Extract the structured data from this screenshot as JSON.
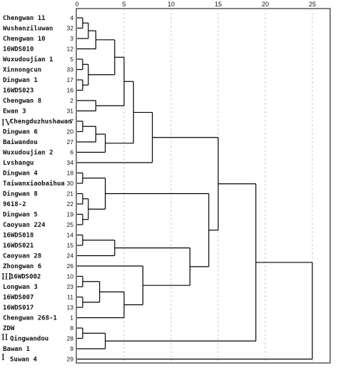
{
  "axis": {
    "ticks": [
      "0",
      "5",
      "10",
      "15",
      "20",
      "25"
    ]
  },
  "groups": [
    "IV",
    "III",
    "II",
    "I"
  ],
  "leaves": [
    {
      "label": "Chengwan 11",
      "num": "4"
    },
    {
      "label": "Wushanziluwan",
      "num": "32"
    },
    {
      "label": "Chengwan 10",
      "num": "3"
    },
    {
      "label": "16WDS010",
      "num": "12"
    },
    {
      "label": "Wuxudoujian 1",
      "num": "5"
    },
    {
      "label": "Xinnongcun",
      "num": "33"
    },
    {
      "label": "Dingwan 1",
      "num": "17"
    },
    {
      "label": "16WDS023",
      "num": "16"
    },
    {
      "label": "Chengwan 8",
      "num": "2"
    },
    {
      "label": "Ewan 3",
      "num": "31"
    },
    {
      "label": "Chengduzhushawan",
      "num": "7"
    },
    {
      "label": "Dingwan 6",
      "num": "20"
    },
    {
      "label": "Baiwandou",
      "num": "27"
    },
    {
      "label": "Wuxudoujian 2",
      "num": "6"
    },
    {
      "label": "Lvshangu",
      "num": "34"
    },
    {
      "label": "Dingwan 4",
      "num": "18"
    },
    {
      "label": "Taiwanxiaobaihua",
      "num": "30"
    },
    {
      "label": "Dingwan 8",
      "num": "21"
    },
    {
      "label": "9618-2",
      "num": "22"
    },
    {
      "label": "Dingwan 5",
      "num": "19"
    },
    {
      "label": "Caoyuan 224",
      "num": "25"
    },
    {
      "label": "16WDS018",
      "num": "14"
    },
    {
      "label": "16WDS021",
      "num": "15"
    },
    {
      "label": "Caoyuan 28",
      "num": "24"
    },
    {
      "label": "Zhongwan 6",
      "num": "26"
    },
    {
      "label": "16WDS002",
      "num": "10"
    },
    {
      "label": "Longwan 3",
      "num": "23"
    },
    {
      "label": "16WDS007",
      "num": "11"
    },
    {
      "label": "16WDS017",
      "num": "13"
    },
    {
      "label": "Chengwan 268-1",
      "num": "1"
    },
    {
      "label": "ZDW",
      "num": "8"
    },
    {
      "label": "Qingwandou",
      "num": "28"
    },
    {
      "label": "Bawan 1",
      "num": "9"
    },
    {
      "label": "Suwan 4",
      "num": "29"
    }
  ],
  "merges": [
    {
      "a": 0,
      "b": 1,
      "d": 0.6
    },
    {
      "a": 4,
      "b": 5,
      "d": 0.6
    },
    {
      "a": 6,
      "b": 7,
      "d": 0.6
    },
    {
      "a": 10,
      "b": 11,
      "d": 0.6
    },
    {
      "a": 15,
      "b": 16,
      "d": 0.6
    },
    {
      "a": 17,
      "b": 18,
      "d": 0.6
    },
    {
      "a": 19,
      "b": 20,
      "d": 0.6
    },
    {
      "a": 25,
      "b": 26,
      "d": 0.6
    },
    {
      "a": 27,
      "b": 28,
      "d": 0.6
    },
    {
      "a": 21,
      "b": 22,
      "d": 0.6
    },
    {
      "a": 30,
      "b": 31,
      "d": 0.6
    },
    {
      "a": 0,
      "b": 2,
      "d": 1.2
    },
    {
      "a": 17,
      "b": 19,
      "d": 1.2
    },
    {
      "a": 0,
      "b": 3,
      "d": 2.0
    },
    {
      "a": 4,
      "b": 6,
      "d": 1.2
    },
    {
      "a": 8,
      "b": 9,
      "d": 2.0
    },
    {
      "a": 10,
      "b": 12,
      "d": 2.0
    },
    {
      "a": 25,
      "b": 27,
      "d": 2.4
    },
    {
      "a": 15,
      "b": 17,
      "d": 3.0
    },
    {
      "a": 10,
      "b": 13,
      "d": 3.0
    },
    {
      "a": 30,
      "b": 32,
      "d": 3.0
    },
    {
      "a": 0,
      "b": 4,
      "d": 4.0
    },
    {
      "a": 21,
      "b": 23,
      "d": 4.0
    },
    {
      "a": 0,
      "b": 8,
      "d": 5.0
    },
    {
      "a": 25,
      "b": 29,
      "d": 5.0
    },
    {
      "a": 0,
      "b": 10,
      "d": 6.0
    },
    {
      "a": 24,
      "b": 25,
      "d": 7.0
    },
    {
      "a": 0,
      "b": 14,
      "d": 8.0
    },
    {
      "a": 21,
      "b": 24,
      "d": 12.0
    },
    {
      "a": 15,
      "b": 21,
      "d": 14.0
    },
    {
      "a": 0,
      "b": 15,
      "d": 15.0
    },
    {
      "a": 0,
      "b": 30,
      "d": 19.0
    },
    {
      "a": 0,
      "b": 33,
      "d": 25.0
    }
  ]
}
